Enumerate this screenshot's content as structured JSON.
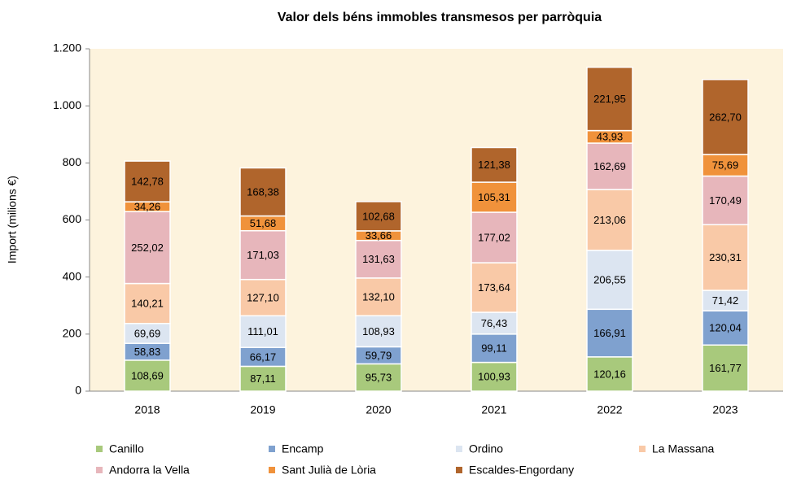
{
  "chart_data": {
    "type": "stacked_bar",
    "title": "Valor dels béns immobles transmesos per parròquia",
    "y_label": "Import (milions €)",
    "categories": [
      "2018",
      "2019",
      "2020",
      "2021",
      "2022",
      "2023"
    ],
    "series": [
      {
        "name": "Canillo",
        "color": "#a8c97c",
        "values": [
          108.69,
          87.11,
          95.73,
          100.93,
          120.16,
          161.77
        ],
        "value_labels": [
          "108,69",
          "87,11",
          "95,73",
          "100,93",
          "120,16",
          "161,77"
        ]
      },
      {
        "name": "Encamp",
        "color": "#7fa1cf",
        "values": [
          58.83,
          66.17,
          59.79,
          99.11,
          166.91,
          120.04
        ],
        "value_labels": [
          "58,83",
          "66,17",
          "59,79",
          "99,11",
          "166,91",
          "120,04"
        ]
      },
      {
        "name": "Ordino",
        "color": "#dce5f1",
        "values": [
          69.69,
          111.01,
          108.93,
          76.43,
          206.55,
          71.42
        ],
        "value_labels": [
          "69,69",
          "111,01",
          "108,93",
          "76,43",
          "206,55",
          "71,42"
        ]
      },
      {
        "name": "La Massana",
        "color": "#f9c9a7",
        "values": [
          140.21,
          127.1,
          132.1,
          173.64,
          213.06,
          230.31
        ],
        "value_labels": [
          "140,21",
          "127,10",
          "132,10",
          "173,64",
          "213,06",
          "230,31"
        ]
      },
      {
        "name": "Andorra la Vella",
        "color": "#e7b6bb",
        "values": [
          252.02,
          171.03,
          131.63,
          177.02,
          162.69,
          170.49
        ],
        "value_labels": [
          "252,02",
          "171,03",
          "131,63",
          "177,02",
          "162,69",
          "170,49"
        ]
      },
      {
        "name": "Sant Julià de Lòria",
        "color": "#f0923b",
        "values": [
          34.26,
          51.68,
          33.66,
          105.31,
          43.93,
          75.69
        ],
        "value_labels": [
          "34,26",
          "51,68",
          "33,66",
          "105,31",
          "43,93",
          "75,69"
        ]
      },
      {
        "name": "Escaldes-Engordany",
        "color": "#b0652c",
        "values": [
          142.78,
          168.38,
          102.68,
          121.38,
          221.95,
          262.7
        ],
        "value_labels": [
          "142,78",
          "168,38",
          "102,68",
          "121,38",
          "221,95",
          "262,70"
        ]
      }
    ],
    "ylim": [
      0,
      1200
    ],
    "yticks": [
      0,
      200,
      400,
      600,
      800,
      {
        "value": 1000,
        "label": "1.000"
      },
      {
        "value": 1200,
        "label": "1.200"
      }
    ],
    "grid": false,
    "legend": "bottom"
  }
}
